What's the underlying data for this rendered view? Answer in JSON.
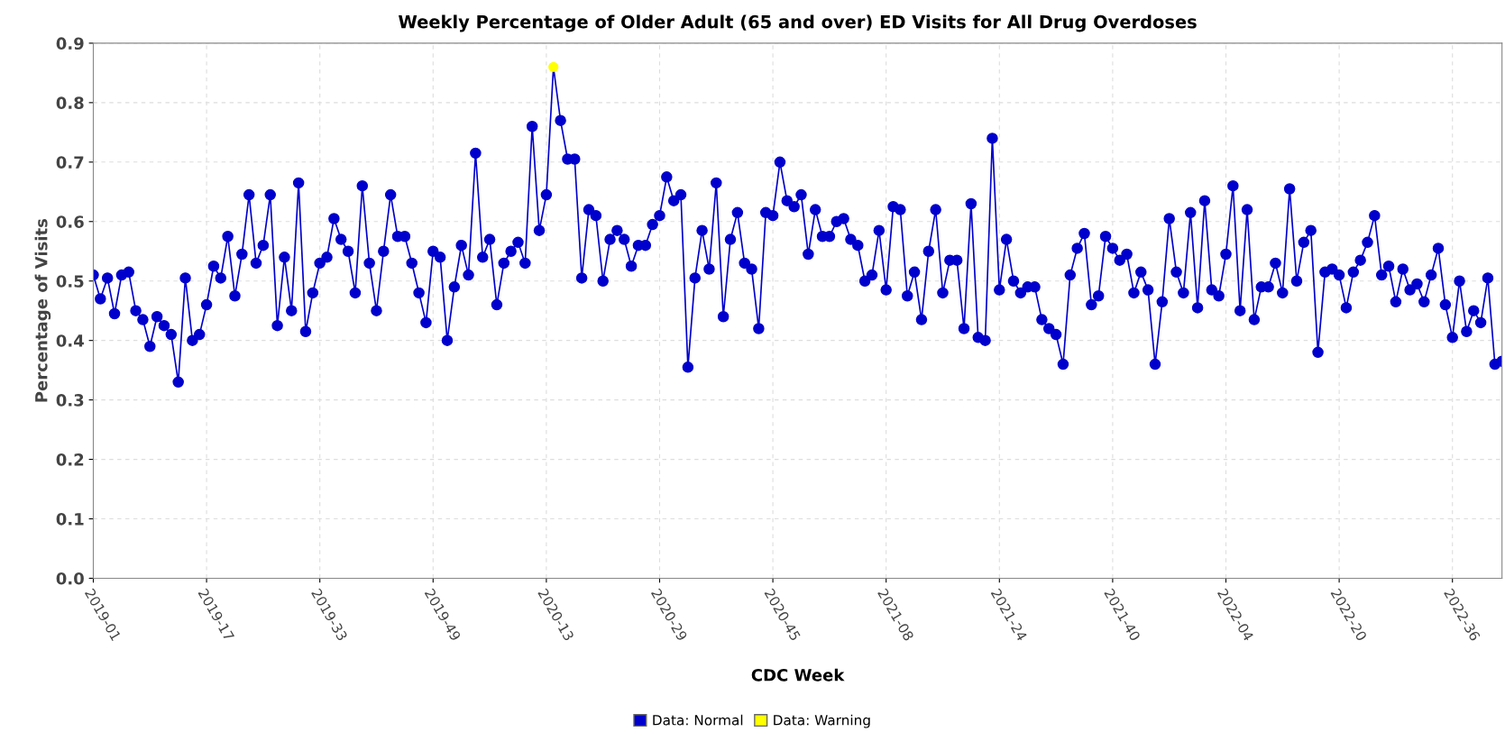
{
  "chart_data": {
    "type": "line",
    "title": "Weekly Percentage of Older Adult (65 and over) ED Visits for All Drug Overdoses",
    "xlabel": "CDC Week",
    "ylabel": "Percentage of Visits",
    "categories": [
      "2019-01",
      null,
      null,
      null,
      null,
      null,
      null,
      null,
      null,
      null,
      null,
      null,
      null,
      null,
      null,
      null,
      "2019-17",
      null,
      null,
      null,
      null,
      null,
      null,
      null,
      null,
      null,
      null,
      null,
      null,
      null,
      null,
      null,
      "2019-33",
      null,
      null,
      null,
      null,
      null,
      null,
      null,
      null,
      null,
      null,
      null,
      null,
      null,
      null,
      null,
      "2019-49",
      null,
      null,
      null,
      null,
      null,
      null,
      null,
      null,
      null,
      null,
      null,
      null,
      null,
      null,
      null,
      "2020-13",
      null,
      null,
      null,
      null,
      null,
      null,
      null,
      null,
      null,
      null,
      null,
      null,
      null,
      null,
      null,
      "2020-29",
      null,
      null,
      null,
      null,
      null,
      null,
      null,
      null,
      null,
      null,
      null,
      null,
      null,
      null,
      null,
      "2020-45",
      null,
      null,
      null,
      null,
      null,
      null,
      null,
      null,
      null,
      null,
      null,
      null,
      null,
      null,
      null,
      "2021-08",
      null,
      null,
      null,
      null,
      null,
      null,
      null,
      null,
      null,
      null,
      null,
      null,
      null,
      null,
      null,
      "2021-24",
      null,
      null,
      null,
      null,
      null,
      null,
      null,
      null,
      null,
      null,
      null,
      null,
      null,
      null,
      null,
      "2021-40",
      null,
      null,
      null,
      null,
      null,
      null,
      null,
      null,
      null,
      null,
      null,
      null,
      null,
      null,
      null,
      "2022-04",
      null,
      null,
      null,
      null,
      null,
      null,
      null,
      null,
      null,
      null,
      null,
      null,
      null,
      null,
      null,
      "2022-20",
      null,
      null,
      null,
      null,
      null,
      null,
      null,
      null,
      null,
      null,
      null,
      null,
      null,
      null,
      null,
      "2022-36",
      null,
      null,
      null,
      null,
      null,
      null,
      null
    ],
    "series": [
      {
        "name": "Data: Normal",
        "color": "#0000cc",
        "values": [
          0.51,
          0.47,
          0.505,
          0.445,
          0.51,
          0.515,
          0.45,
          0.435,
          0.39,
          0.44,
          0.425,
          0.41,
          0.33,
          0.505,
          0.4,
          0.41,
          0.46,
          0.525,
          0.505,
          0.575,
          0.475,
          0.545,
          0.645,
          0.53,
          0.56,
          0.645,
          0.425,
          0.54,
          0.45,
          0.665,
          0.415,
          0.48,
          0.53,
          0.54,
          0.605,
          0.57,
          0.55,
          0.48,
          0.66,
          0.53,
          0.45,
          0.55,
          0.645,
          0.575,
          0.575,
          0.53,
          0.48,
          0.43,
          0.55,
          0.54,
          0.4,
          0.49,
          0.56,
          0.51,
          0.715,
          0.54,
          0.57,
          0.46,
          0.53,
          0.55,
          0.565,
          0.53,
          0.76,
          0.585,
          0.645,
          0.86,
          0.77,
          0.705,
          0.705,
          0.505,
          0.62,
          0.61,
          0.5,
          0.57,
          0.585,
          0.57,
          0.525,
          0.56,
          0.56,
          0.595,
          0.61,
          0.675,
          0.635,
          0.645,
          0.355,
          0.505,
          0.585,
          0.52,
          0.665,
          0.44,
          0.57,
          0.615,
          0.53,
          0.52,
          0.42,
          0.615,
          0.61,
          0.7,
          0.635,
          0.625,
          0.645,
          0.545,
          0.62,
          0.575,
          0.575,
          0.6,
          0.605,
          0.57,
          0.56,
          0.5,
          0.51,
          0.585,
          0.485,
          0.625,
          0.62,
          0.475,
          0.515,
          0.435,
          0.55,
          0.62,
          0.48,
          0.535,
          0.535,
          0.42,
          0.63,
          0.405,
          0.4,
          0.74,
          0.485,
          0.57,
          0.5,
          0.48,
          0.49,
          0.49,
          0.435,
          0.42,
          0.41,
          0.36,
          0.51,
          0.555,
          0.58,
          0.46,
          0.475,
          0.575,
          0.555,
          0.535,
          0.545,
          0.48,
          0.515,
          0.485,
          0.36,
          0.465,
          0.605,
          0.515,
          0.48,
          0.615,
          0.455,
          0.635,
          0.485,
          0.475,
          0.545,
          0.66,
          0.45,
          0.62,
          0.435,
          0.49,
          0.49,
          0.53,
          0.48,
          0.655,
          0.5,
          0.565,
          0.585,
          0.38,
          0.515,
          0.52,
          0.51,
          0.455,
          0.515,
          0.535,
          0.565,
          0.61,
          0.51,
          0.525,
          0.465,
          0.52,
          0.485,
          0.495,
          0.465,
          0.51,
          0.555,
          0.46,
          0.405,
          0.5,
          0.415,
          0.45,
          0.43,
          0.505,
          0.36,
          0.365
        ]
      },
      {
        "name": "Data: Warning",
        "type": "scatter",
        "color": "#ffff00",
        "values": [
          null,
          null,
          null,
          null,
          null,
          null,
          null,
          null,
          null,
          null,
          null,
          null,
          null,
          null,
          null,
          null,
          null,
          null,
          null,
          null,
          null,
          null,
          null,
          null,
          null,
          null,
          null,
          null,
          null,
          null,
          null,
          null,
          null,
          null,
          null,
          null,
          null,
          null,
          null,
          null,
          null,
          null,
          null,
          null,
          null,
          null,
          null,
          null,
          null,
          null,
          null,
          null,
          null,
          null,
          null,
          null,
          null,
          null,
          null,
          null,
          null,
          null,
          null,
          null,
          null,
          0.86,
          null,
          null,
          null,
          null,
          null,
          null,
          null,
          null,
          null,
          null,
          null,
          null,
          null,
          null,
          null,
          null,
          null,
          null,
          null,
          null,
          null,
          null,
          null,
          null,
          null,
          null,
          null,
          null,
          null,
          null,
          null,
          null,
          null,
          null,
          null,
          null,
          null,
          null,
          null,
          null,
          null,
          null,
          null,
          null,
          null,
          null,
          null,
          null,
          null,
          null,
          null,
          null,
          null,
          null,
          null,
          null,
          null,
          null,
          null,
          null,
          null,
          null,
          null,
          null,
          null,
          null,
          null,
          null,
          null,
          null,
          null,
          null,
          null,
          null,
          null,
          null,
          null,
          null,
          null,
          null,
          null,
          null,
          null,
          null,
          null,
          null,
          null,
          null,
          null,
          null,
          null,
          null,
          null,
          null,
          null,
          null,
          null,
          null,
          null,
          null,
          null,
          null,
          null,
          null,
          null,
          null,
          null,
          null,
          null,
          null,
          null,
          null,
          null,
          null,
          null,
          null,
          null,
          null,
          null,
          null,
          null,
          null,
          null,
          null,
          null,
          null,
          null,
          null,
          null,
          null,
          null,
          null,
          null,
          null
        ]
      }
    ],
    "ylim": [
      0,
      0.9
    ],
    "yticks": [
      {
        "value": 0,
        "label": "0.0"
      },
      0.1,
      0.2,
      0.3,
      0.4,
      0.5,
      0.6,
      0.7,
      0.8,
      0.9
    ],
    "grid": true,
    "legend": "bottom",
    "marker": "circle",
    "line_style": "solid"
  }
}
